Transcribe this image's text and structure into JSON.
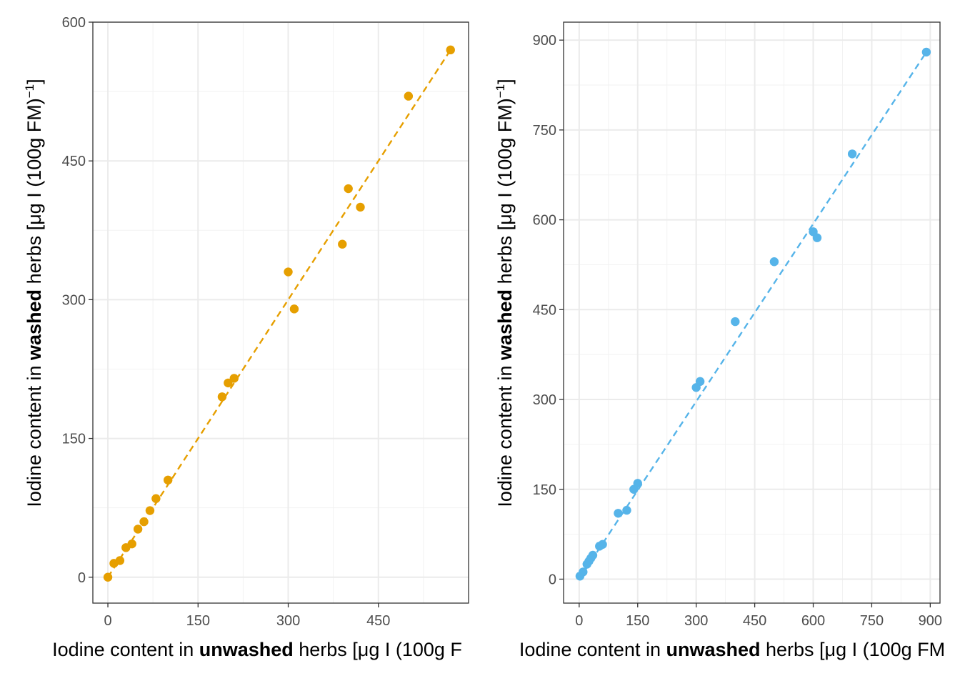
{
  "chart_data": [
    {
      "type": "scatter",
      "xlabel_parts": [
        "Iodine content in ",
        "unwashed",
        " herbs [",
        "μ",
        "g I (100g F"
      ],
      "ylabel_parts": [
        "Iodine content in ",
        "washed",
        " herbs [",
        "μ",
        "g I (100g FM)",
        "−1",
        "]"
      ],
      "xlim": [
        -25,
        600
      ],
      "ylim": [
        -28,
        600
      ],
      "xticks": [
        0,
        150,
        300,
        450
      ],
      "xtick_labels": [
        "0",
        "150",
        "300",
        "450"
      ],
      "yticks": [
        0,
        150,
        300,
        450,
        600
      ],
      "ytick_labels": [
        "0",
        "150",
        "300",
        "450",
        "600"
      ],
      "color": "#E69F00",
      "grid": true,
      "trend_line": {
        "style": "dashed",
        "from": [
          0,
          0
        ],
        "to": [
          570,
          570
        ]
      },
      "points": [
        {
          "x": 0,
          "y": 0
        },
        {
          "x": 10,
          "y": 15
        },
        {
          "x": 20,
          "y": 18
        },
        {
          "x": 30,
          "y": 32
        },
        {
          "x": 40,
          "y": 36
        },
        {
          "x": 50,
          "y": 52
        },
        {
          "x": 60,
          "y": 60
        },
        {
          "x": 70,
          "y": 72
        },
        {
          "x": 80,
          "y": 85
        },
        {
          "x": 100,
          "y": 105
        },
        {
          "x": 190,
          "y": 195
        },
        {
          "x": 200,
          "y": 210
        },
        {
          "x": 210,
          "y": 215
        },
        {
          "x": 300,
          "y": 330
        },
        {
          "x": 310,
          "y": 290
        },
        {
          "x": 390,
          "y": 360
        },
        {
          "x": 400,
          "y": 420
        },
        {
          "x": 420,
          "y": 400
        },
        {
          "x": 500,
          "y": 520
        },
        {
          "x": 570,
          "y": 570
        }
      ]
    },
    {
      "type": "scatter",
      "xlabel_parts": [
        "Iodine content in ",
        "unwashed",
        " herbs [",
        "μ",
        "g I (100g FM"
      ],
      "ylabel_parts": [
        "Iodine content in ",
        "washed",
        " herbs [",
        "μ",
        "g I (100g FM)",
        "−1",
        "]"
      ],
      "xlim": [
        -40,
        925
      ],
      "ylim": [
        -40,
        930
      ],
      "xticks": [
        0,
        150,
        300,
        450,
        600,
        750,
        900
      ],
      "xtick_labels": [
        "0",
        "150",
        "300",
        "450",
        "600",
        "750",
        "900"
      ],
      "yticks": [
        0,
        150,
        300,
        450,
        600,
        750,
        900
      ],
      "ytick_labels": [
        "0",
        "150",
        "300",
        "450",
        "600",
        "750",
        "900"
      ],
      "color": "#56B4E9",
      "grid": true,
      "trend_line": {
        "style": "dashed",
        "from": [
          0,
          0
        ],
        "to": [
          890,
          880
        ]
      },
      "points": [
        {
          "x": 2,
          "y": 5
        },
        {
          "x": 10,
          "y": 12
        },
        {
          "x": 20,
          "y": 25
        },
        {
          "x": 25,
          "y": 30
        },
        {
          "x": 30,
          "y": 35
        },
        {
          "x": 35,
          "y": 40
        },
        {
          "x": 52,
          "y": 55
        },
        {
          "x": 60,
          "y": 58
        },
        {
          "x": 100,
          "y": 110
        },
        {
          "x": 122,
          "y": 115
        },
        {
          "x": 140,
          "y": 150
        },
        {
          "x": 150,
          "y": 160
        },
        {
          "x": 300,
          "y": 320
        },
        {
          "x": 310,
          "y": 330
        },
        {
          "x": 400,
          "y": 430
        },
        {
          "x": 500,
          "y": 530
        },
        {
          "x": 600,
          "y": 580
        },
        {
          "x": 610,
          "y": 570
        },
        {
          "x": 700,
          "y": 710
        },
        {
          "x": 890,
          "y": 880
        }
      ]
    }
  ]
}
